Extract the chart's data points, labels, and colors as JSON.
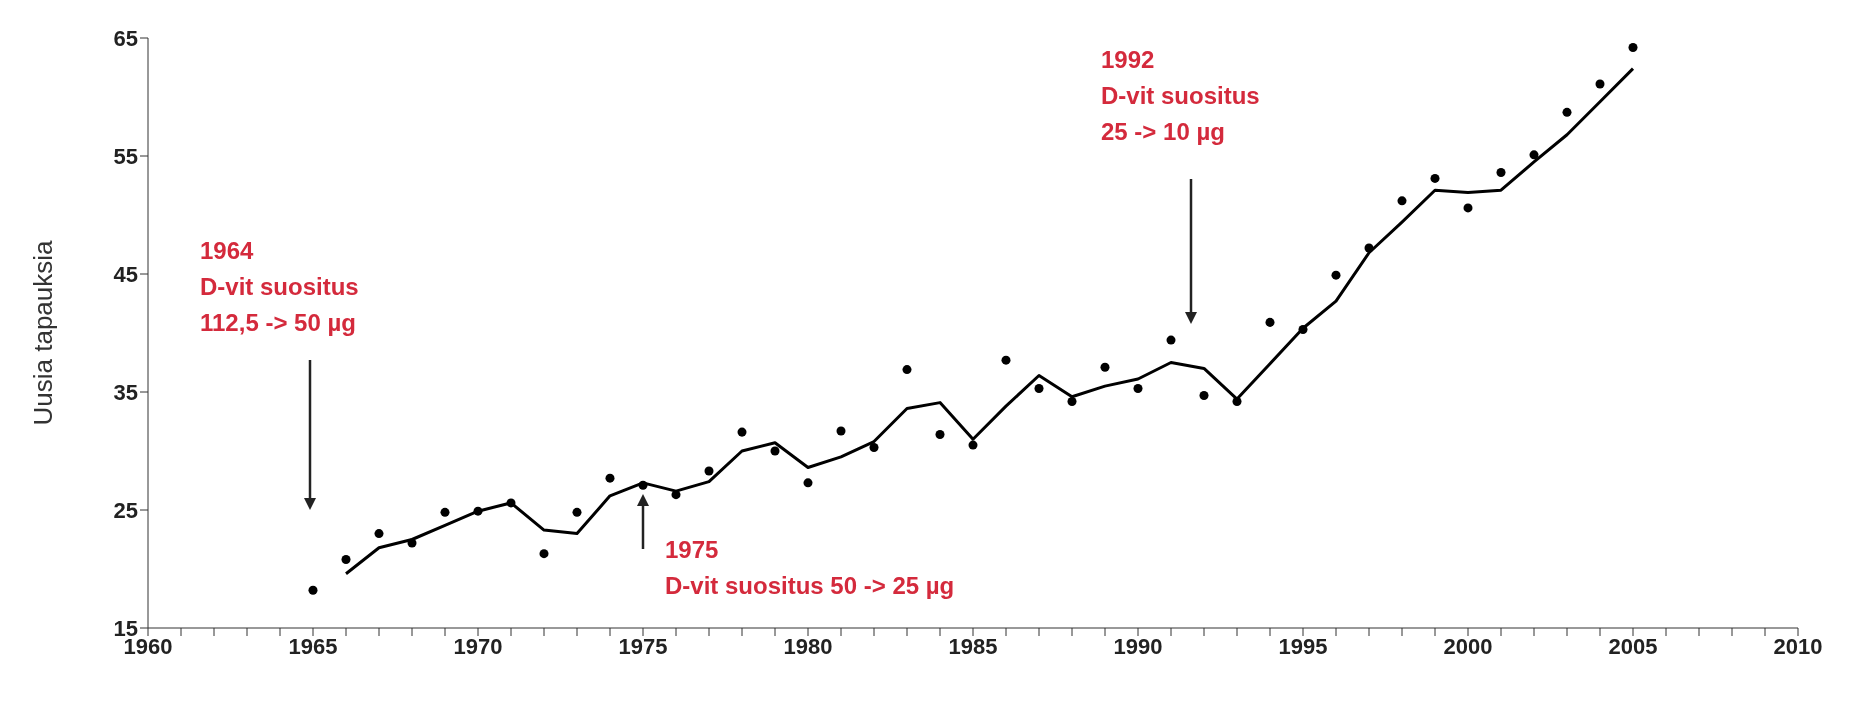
{
  "chart_data": {
    "type": "scatter",
    "ylabel": "Uusia tapauksia",
    "series": [
      {
        "marker": "circle",
        "color": "#000000",
        "x": [
          1965,
          1966,
          1967,
          1968,
          1969,
          1970,
          1971,
          1972,
          1973,
          1974,
          1975,
          1976,
          1977,
          1978,
          1979,
          1980,
          1981,
          1982,
          1983,
          1984,
          1985,
          1986,
          1987,
          1988,
          1989,
          1990,
          1991,
          1992,
          1993,
          1994,
          1995,
          1996,
          1997,
          1998,
          1999,
          2000,
          2001,
          2002,
          2003,
          2004,
          2005
        ],
        "values": [
          18.2,
          20.8,
          23.0,
          22.2,
          24.8,
          24.9,
          25.6,
          21.3,
          24.8,
          27.7,
          27.1,
          26.3,
          28.3,
          31.6,
          30.0,
          27.3,
          31.7,
          30.3,
          36.9,
          31.4,
          30.5,
          37.7,
          35.3,
          34.2,
          37.1,
          35.3,
          39.4,
          34.7,
          34.2,
          40.9,
          40.3,
          44.9,
          47.2,
          51.2,
          53.1,
          50.6,
          53.6,
          55.1,
          58.7,
          61.1,
          64.2
        ]
      },
      {
        "type": "line",
        "marker": "none",
        "color": "#000000",
        "x": [
          1966,
          1967,
          1968,
          1969,
          1970,
          1971,
          1972,
          1973,
          1974,
          1975,
          1976,
          1977,
          1978,
          1979,
          1980,
          1981,
          1982,
          1983,
          1984,
          1985,
          1986,
          1987,
          1988,
          1989,
          1990,
          1991,
          1992,
          1993,
          1994,
          1995,
          1996,
          1997,
          1998,
          1999,
          2000,
          2001,
          2002,
          2003,
          2004,
          2005
        ],
        "values": [
          19.6,
          21.8,
          22.5,
          23.7,
          24.9,
          25.6,
          23.3,
          23.0,
          26.2,
          27.3,
          26.6,
          27.4,
          30.0,
          30.7,
          28.6,
          29.5,
          30.8,
          33.6,
          34.1,
          31.0,
          33.8,
          36.4,
          34.6,
          35.5,
          36.1,
          37.5,
          37.0,
          34.4,
          37.4,
          40.4,
          42.7,
          46.8,
          49.4,
          52.1,
          51.9,
          52.1,
          54.5,
          56.8,
          59.6,
          62.4
        ]
      }
    ],
    "line_style": "solid",
    "xlim": [
      1960,
      2010
    ],
    "xticks": [
      1960,
      {
        "value": 1961,
        "label": null
      },
      {
        "value": 1962,
        "label": null
      },
      {
        "value": 1963,
        "label": null
      },
      {
        "value": 1964,
        "label": null
      },
      1965,
      {
        "value": 1966,
        "label": null
      },
      {
        "value": 1967,
        "label": null
      },
      {
        "value": 1968,
        "label": null
      },
      {
        "value": 1969,
        "label": null
      },
      1970,
      {
        "value": 1971,
        "label": null
      },
      {
        "value": 1972,
        "label": null
      },
      {
        "value": 1973,
        "label": null
      },
      {
        "value": 1974,
        "label": null
      },
      1975,
      {
        "value": 1976,
        "label": null
      },
      {
        "value": 1977,
        "label": null
      },
      {
        "value": 1978,
        "label": null
      },
      {
        "value": 1979,
        "label": null
      },
      1980,
      {
        "value": 1981,
        "label": null
      },
      {
        "value": 1982,
        "label": null
      },
      {
        "value": 1983,
        "label": null
      },
      {
        "value": 1984,
        "label": null
      },
      1985,
      {
        "value": 1986,
        "label": null
      },
      {
        "value": 1987,
        "label": null
      },
      {
        "value": 1988,
        "label": null
      },
      {
        "value": 1989,
        "label": null
      },
      1990,
      {
        "value": 1991,
        "label": null
      },
      {
        "value": 1992,
        "label": null
      },
      {
        "value": 1993,
        "label": null
      },
      {
        "value": 1994,
        "label": null
      },
      1995,
      {
        "value": 1996,
        "label": null
      },
      {
        "value": 1997,
        "label": null
      },
      {
        "value": 1998,
        "label": null
      },
      {
        "value": 1999,
        "label": null
      },
      2000,
      {
        "value": 2001,
        "label": null
      },
      {
        "value": 2002,
        "label": null
      },
      {
        "value": 2003,
        "label": null
      },
      {
        "value": 2004,
        "label": null
      },
      2005,
      {
        "value": 2006,
        "label": null
      },
      {
        "value": 2007,
        "label": null
      },
      {
        "value": 2008,
        "label": null
      },
      {
        "value": 2009,
        "label": null
      },
      2010
    ],
    "ylim": [
      15,
      65
    ],
    "yticks": [
      15,
      25,
      35,
      45,
      55,
      65
    ],
    "grid": false,
    "annotations": [
      "1964\nD-vit suositus\n112,5 -> 50 µg",
      "1975\nD-vit suositus 50 -> 25 µg",
      "1992\nD-vit suositus\n25 -> 10 µg"
    ]
  }
}
